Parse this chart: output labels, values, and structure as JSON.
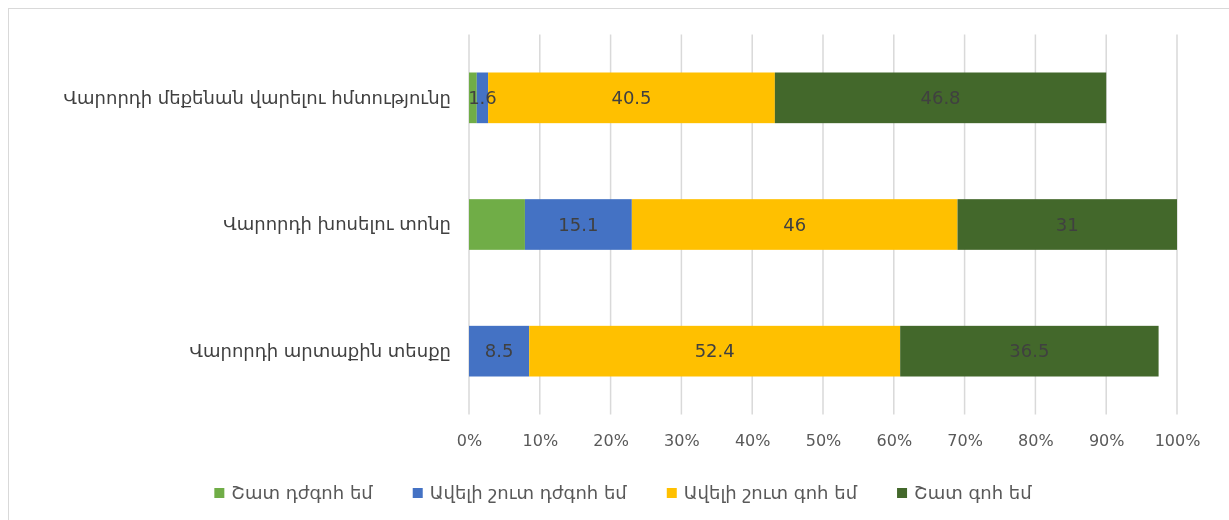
{
  "chart_data": {
    "type": "bar",
    "orientation": "horizontal",
    "stacked": true,
    "categories": [
      "Վարորդի մեքենան վարելու հմտությունը",
      "Վարորդի խոսելու տոնը",
      "Վարորդի արտաքին տեսքը"
    ],
    "series": [
      {
        "name": "Շատ դժգոհ եմ",
        "color": "#70ad47",
        "values": [
          1.1,
          7.9,
          null
        ]
      },
      {
        "name": "Ավելի շուտ դժգոհ եմ",
        "color": "#4472c4",
        "values": [
          1.6,
          15.1,
          8.5
        ],
        "value_labels": [
          "1.6",
          "15.1",
          "8.5"
        ]
      },
      {
        "name": "Ավելի շուտ գոհ եմ",
        "color": "#ffc000",
        "values": [
          40.5,
          46,
          52.4
        ],
        "value_labels": [
          "40.5",
          "46",
          "52.4"
        ]
      },
      {
        "name": "Շատ գոհ եմ",
        "color": "#43682b",
        "values": [
          46.8,
          31,
          36.5
        ],
        "value_labels": [
          "46.8",
          "31",
          "36.5"
        ]
      }
    ],
    "xlim": [
      0,
      100
    ],
    "xticks": [
      {
        "value": 0,
        "label": "0%"
      },
      {
        "value": 10,
        "label": "10%"
      },
      {
        "value": 20,
        "label": "20%"
      },
      {
        "value": 30,
        "label": "30%"
      },
      {
        "value": 40,
        "label": "40%"
      },
      {
        "value": 50,
        "label": "50%"
      },
      {
        "value": 60,
        "label": "60%"
      },
      {
        "value": 70,
        "label": "70%"
      },
      {
        "value": 80,
        "label": "80%"
      },
      {
        "value": 90,
        "label": "90%"
      },
      {
        "value": 100,
        "label": "100%"
      }
    ],
    "grid": "x",
    "legend": "bottom"
  }
}
